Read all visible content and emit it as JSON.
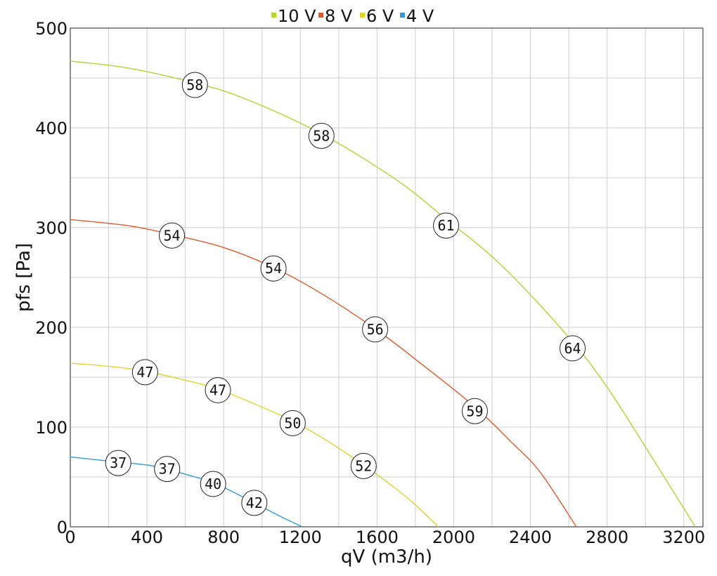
{
  "chart_data": {
    "type": "line",
    "title": "",
    "xlabel": "qV (m3/h)",
    "ylabel": "pfs [Pa]",
    "xlim": [
      0,
      3300
    ],
    "ylim": [
      0,
      500
    ],
    "xticks": [
      0,
      400,
      800,
      1200,
      1600,
      2000,
      2400,
      2800,
      3200
    ],
    "yticks": [
      0,
      100,
      200,
      300,
      400,
      500
    ],
    "grid": true,
    "legend_position": "top-center",
    "series": [
      {
        "name": "10 V",
        "color": "#b5d334",
        "points": [
          [
            0,
            467
          ],
          [
            300,
            460
          ],
          [
            650,
            445
          ],
          [
            900,
            430
          ],
          [
            1300,
            395
          ],
          [
            1700,
            348
          ],
          [
            1950,
            310
          ],
          [
            2250,
            262
          ],
          [
            2600,
            190
          ],
          [
            2800,
            140
          ],
          [
            3000,
            80
          ],
          [
            3260,
            0
          ]
        ],
        "labels": [
          {
            "x": 650,
            "y": 443,
            "text": "58"
          },
          {
            "x": 1310,
            "y": 392,
            "text": "58"
          },
          {
            "x": 1960,
            "y": 302,
            "text": "61"
          },
          {
            "x": 2620,
            "y": 179,
            "text": "64"
          }
        ]
      },
      {
        "name": "8 V",
        "color": "#e05a2b",
        "points": [
          [
            0,
            308
          ],
          [
            300,
            302
          ],
          [
            530,
            293
          ],
          [
            800,
            280
          ],
          [
            1060,
            260
          ],
          [
            1300,
            235
          ],
          [
            1580,
            200
          ],
          [
            1800,
            168
          ],
          [
            2100,
            122
          ],
          [
            2300,
            85
          ],
          [
            2450,
            55
          ],
          [
            2640,
            0
          ]
        ],
        "labels": [
          {
            "x": 530,
            "y": 292,
            "text": "54"
          },
          {
            "x": 1060,
            "y": 259,
            "text": "54"
          },
          {
            "x": 1590,
            "y": 198,
            "text": "56"
          },
          {
            "x": 2110,
            "y": 116,
            "text": "59"
          }
        ]
      },
      {
        "name": "6 V",
        "color": "#e2d22e",
        "points": [
          [
            0,
            164
          ],
          [
            200,
            161
          ],
          [
            390,
            156
          ],
          [
            600,
            147
          ],
          [
            770,
            138
          ],
          [
            1000,
            120
          ],
          [
            1170,
            105
          ],
          [
            1350,
            85
          ],
          [
            1530,
            62
          ],
          [
            1700,
            38
          ],
          [
            1800,
            22
          ],
          [
            1920,
            0
          ]
        ],
        "labels": [
          {
            "x": 390,
            "y": 155,
            "text": "47"
          },
          {
            "x": 770,
            "y": 137,
            "text": "47"
          },
          {
            "x": 1160,
            "y": 104,
            "text": "50"
          },
          {
            "x": 1530,
            "y": 61,
            "text": "52"
          }
        ]
      },
      {
        "name": "4 V",
        "color": "#3399dd",
        "points": [
          [
            0,
            70
          ],
          [
            150,
            67
          ],
          [
            250,
            65
          ],
          [
            400,
            62
          ],
          [
            500,
            58
          ],
          [
            650,
            50
          ],
          [
            750,
            44
          ],
          [
            900,
            30
          ],
          [
            1000,
            20
          ],
          [
            1100,
            10
          ],
          [
            1210,
            0
          ]
        ],
        "labels": [
          {
            "x": 250,
            "y": 64,
            "text": "37"
          },
          {
            "x": 505,
            "y": 58,
            "text": "37"
          },
          {
            "x": 745,
            "y": 43,
            "text": "40"
          },
          {
            "x": 960,
            "y": 24,
            "text": "42"
          }
        ]
      }
    ]
  }
}
